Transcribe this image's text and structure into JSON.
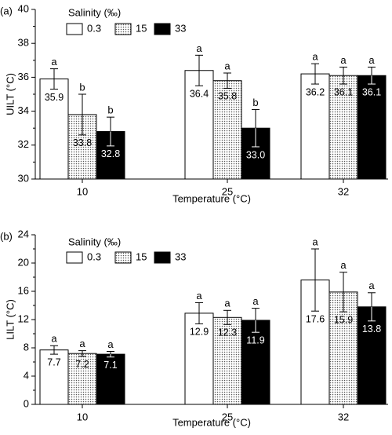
{
  "chart_data": [
    {
      "panel": "(a)",
      "type": "bar",
      "ylabel": "UILT (°C)",
      "xlabel": "Temperature (°C)",
      "ylim": [
        30,
        40
      ],
      "yticks": [
        "30",
        "32",
        "34",
        "36",
        "38",
        "40"
      ],
      "categories": [
        "10",
        "25",
        "32"
      ],
      "legend_title": "Salinity (‰)",
      "legend_position": "top-left",
      "series": [
        {
          "name": "0.3",
          "fill": "white",
          "values": [
            35.9,
            36.4,
            36.2
          ],
          "errors": [
            0.6,
            0.9,
            0.6
          ],
          "labels": [
            "35.9",
            "36.4",
            "36.2"
          ],
          "letters": [
            "a",
            "a",
            "a"
          ]
        },
        {
          "name": "15",
          "fill": "dotted",
          "values": [
            33.8,
            35.8,
            36.1
          ],
          "errors": [
            1.2,
            0.45,
            0.5
          ],
          "labels": [
            "33.8",
            "35.8",
            "36.1"
          ],
          "letters": [
            "b",
            "a",
            "a"
          ]
        },
        {
          "name": "33",
          "fill": "black",
          "values": [
            32.8,
            33.0,
            36.1
          ],
          "errors": [
            0.85,
            1.1,
            0.5
          ],
          "labels": [
            "32.8",
            "33.0",
            "36.1"
          ],
          "letters": [
            "b",
            "b",
            "a"
          ]
        }
      ]
    },
    {
      "panel": "(b)",
      "type": "bar",
      "ylabel": "LILT (°C)",
      "xlabel": "Temperature (°C)",
      "ylim": [
        0,
        24
      ],
      "yticks": [
        "0",
        "4",
        "8",
        "12",
        "16",
        "20",
        "24"
      ],
      "categories": [
        "10",
        "25",
        "32"
      ],
      "legend_title": "Salinity (‰)",
      "legend_position": "top-left",
      "series": [
        {
          "name": "0.3",
          "fill": "white",
          "values": [
            7.7,
            12.9,
            17.6
          ],
          "errors": [
            0.6,
            1.5,
            4.4
          ],
          "labels": [
            "7.7",
            "12.9",
            "17.6"
          ],
          "letters": [
            "a",
            "a",
            "a"
          ]
        },
        {
          "name": "15",
          "fill": "dotted",
          "values": [
            7.2,
            12.3,
            15.9
          ],
          "errors": [
            0.4,
            1.0,
            2.8
          ],
          "labels": [
            "7.2",
            "12.3",
            "15.9"
          ],
          "letters": [
            "a",
            "a",
            "a"
          ]
        },
        {
          "name": "33",
          "fill": "black",
          "values": [
            7.1,
            11.9,
            13.8
          ],
          "errors": [
            0.4,
            1.7,
            2.0
          ],
          "labels": [
            "7.1",
            "11.9",
            "13.8"
          ],
          "letters": [
            "a",
            "a",
            "a"
          ]
        }
      ]
    }
  ]
}
